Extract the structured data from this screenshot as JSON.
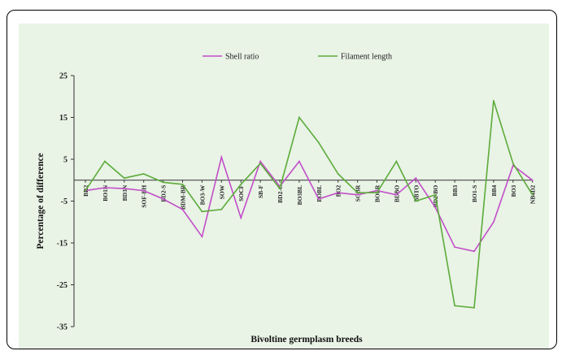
{
  "chart_data": {
    "type": "line",
    "title": "",
    "xlabel": "Bivoltine germplasm breeds",
    "ylabel": "Percentage of difference",
    "ylim": [
      -35,
      25
    ],
    "yticks": [
      25,
      15,
      5,
      -5,
      -15,
      -25,
      -35
    ],
    "grid": false,
    "legend": "top-center",
    "categories": [
      "BR2",
      "BO1N",
      "BD3N",
      "SOF-BH",
      "BD2-S",
      "BDM-BR",
      "BO3-W",
      "SOW",
      "SOCF",
      "SB-F",
      "BD2-C",
      "BO3BL",
      "BOBL",
      "BO2",
      "SOBR",
      "BOBR",
      "BDBO",
      "BBTO",
      "BD2-BO",
      "BB3",
      "BO1-S",
      "BB4",
      "BO3",
      "NB4D2"
    ],
    "series": [
      {
        "name": "Shell ratio",
        "color": "#c24ec8",
        "values": [
          -2.5,
          -1.8,
          -2,
          -2.5,
          -4.5,
          -7,
          -13.5,
          5.5,
          -9,
          4.5,
          -1.5,
          4.5,
          -4.5,
          -3,
          -3.5,
          -2.5,
          -3.5,
          0.5,
          -6.5,
          -16,
          -17,
          -10,
          3.5,
          0
        ]
      },
      {
        "name": "Filament length",
        "color": "#5cab3a",
        "values": [
          -2.5,
          4.5,
          0.5,
          1.5,
          -0.5,
          -1,
          -7.5,
          -7,
          -1,
          4,
          -2,
          15,
          9,
          1.5,
          -3,
          -3,
          4.5,
          -5,
          -3.5,
          -30,
          -30.5,
          19,
          4,
          -3.5
        ]
      }
    ]
  }
}
